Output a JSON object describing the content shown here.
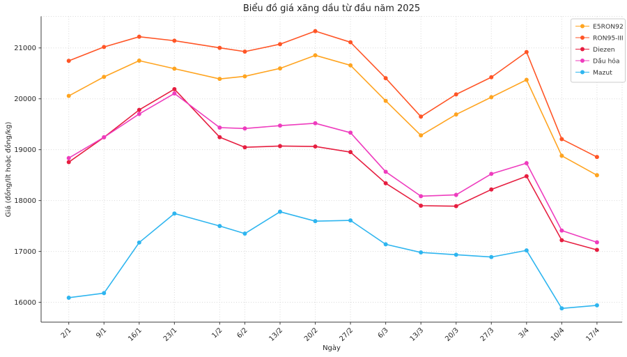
{
  "chart_data": {
    "type": "line",
    "title": "Biểu đồ giá xăng dầu từ đầu năm 2025",
    "xlabel": "Ngày",
    "ylabel": "Giá (đồng/lít hoặc đồng/kg)",
    "categories": [
      "2/1",
      "9/1",
      "16/1",
      "23/1",
      "1/2",
      "6/2",
      "13/2",
      "20/2",
      "27/2",
      "6/3",
      "13/3",
      "20/3",
      "27/3",
      "3/4",
      "10/4",
      "17/4"
    ],
    "x_day_of_year": [
      2,
      9,
      16,
      23,
      32,
      37,
      44,
      51,
      58,
      65,
      72,
      79,
      86,
      93,
      100,
      107
    ],
    "series": [
      {
        "name": "E5RON92",
        "color": "#FFA420",
        "values": [
          20057,
          20431,
          20750,
          20592,
          20391,
          20442,
          20598,
          20855,
          20658,
          19960,
          19281,
          19692,
          20032,
          20373,
          18880,
          18498
        ]
      },
      {
        "name": "RON95-III",
        "color": "#FF5526",
        "values": [
          20746,
          21019,
          21220,
          21142,
          21002,
          20928,
          21074,
          21331,
          21112,
          20406,
          19649,
          20087,
          20424,
          20919,
          19207,
          18856
        ]
      },
      {
        "name": "Diezen",
        "color": "#E61E40",
        "values": [
          18755,
          19243,
          19782,
          20190,
          19246,
          19047,
          19071,
          19063,
          18952,
          18340,
          17899,
          17890,
          18217,
          18478,
          17220,
          17030
        ]
      },
      {
        "name": "Dầu hỏa",
        "color": "#EE3CBE",
        "values": [
          18835,
          19244,
          19702,
          20105,
          19434,
          19416,
          19473,
          19519,
          19334,
          18566,
          18086,
          18112,
          18524,
          18735,
          17410,
          17180
        ]
      },
      {
        "name": "Mazut",
        "color": "#2EB5EF",
        "values": [
          16090,
          16180,
          17175,
          17745,
          17500,
          17350,
          17780,
          17595,
          17610,
          17140,
          16980,
          16935,
          16890,
          17020,
          15880,
          15940
        ]
      }
    ],
    "yticks": [
      16000,
      17000,
      18000,
      19000,
      20000,
      21000
    ],
    "ylim": [
      15610,
      21620
    ],
    "grid": true,
    "legend_position": "top-right",
    "marker": "circle",
    "colors": {
      "grid": "#d8d8d8",
      "axis": "#3d3d3d",
      "tick_text": "#262626",
      "legend_border": "#cccccc",
      "legend_text": "#333333"
    }
  }
}
